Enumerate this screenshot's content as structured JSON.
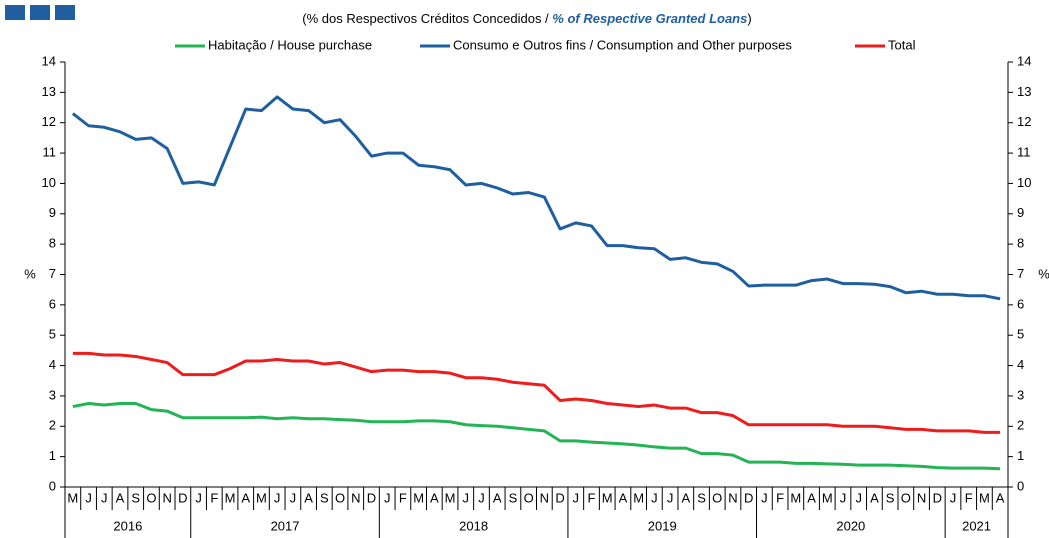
{
  "chart_data": {
    "type": "line",
    "subtitle": [
      "(% dos Respectivos  Créditos Concedidos / ",
      "% of Respective Granted Loans",
      ")"
    ],
    "categories": [
      "M",
      "J",
      "J",
      "A",
      "S",
      "O",
      "N",
      "D",
      "J",
      "F",
      "M",
      "A",
      "M",
      "J",
      "J",
      "A",
      "S",
      "O",
      "N",
      "D",
      "J",
      "F",
      "M",
      "A",
      "M",
      "J",
      "J",
      "A",
      "S",
      "O",
      "N",
      "D",
      "J",
      "F",
      "M",
      "A",
      "M",
      "J",
      "J",
      "A",
      "S",
      "O",
      "N",
      "D",
      "J",
      "F",
      "M",
      "A",
      "M",
      "J",
      "J",
      "A",
      "S",
      "O",
      "N",
      "D",
      "J",
      "F",
      "M",
      "A"
    ],
    "years": [
      "2016",
      "2017",
      "2018",
      "2019",
      "2020",
      "2021"
    ],
    "series": [
      {
        "name": "Habitação / House purchase",
        "color": "#22b455",
        "values": [
          2.65,
          2.75,
          2.7,
          2.75,
          2.75,
          2.55,
          2.5,
          2.28,
          2.28,
          2.28,
          2.28,
          2.28,
          2.3,
          2.25,
          2.28,
          2.25,
          2.25,
          2.22,
          2.2,
          2.15,
          2.15,
          2.15,
          2.18,
          2.18,
          2.15,
          2.05,
          2.02,
          2.0,
          1.95,
          1.9,
          1.85,
          1.52,
          1.52,
          1.48,
          1.45,
          1.42,
          1.38,
          1.32,
          1.28,
          1.28,
          1.1,
          1.1,
          1.05,
          0.82,
          0.82,
          0.82,
          0.78,
          0.78,
          0.76,
          0.75,
          0.72,
          0.72,
          0.72,
          0.7,
          0.68,
          0.64,
          0.62,
          0.62,
          0.62,
          0.6
        ]
      },
      {
        "name": "Consumo e Outros fins / Consumption and Other purposes",
        "color": "#1f5fa0",
        "values": [
          12.3,
          11.9,
          11.85,
          11.7,
          11.45,
          11.5,
          11.15,
          10.0,
          10.05,
          9.95,
          11.2,
          12.45,
          12.4,
          12.85,
          12.45,
          12.4,
          12.0,
          12.1,
          11.55,
          10.9,
          11.0,
          11.0,
          10.6,
          10.55,
          10.45,
          9.95,
          10.0,
          9.85,
          9.65,
          9.7,
          9.55,
          8.5,
          8.7,
          8.6,
          7.95,
          7.95,
          7.88,
          7.85,
          7.5,
          7.55,
          7.4,
          7.35,
          7.1,
          6.62,
          6.65,
          6.65,
          6.65,
          6.8,
          6.85,
          6.7,
          6.7,
          6.68,
          6.6,
          6.4,
          6.45,
          6.35,
          6.35,
          6.3,
          6.3,
          6.2
        ]
      },
      {
        "name": "Total",
        "color": "#ee1c1c",
        "values": [
          4.4,
          4.4,
          4.35,
          4.35,
          4.3,
          4.2,
          4.1,
          3.7,
          3.7,
          3.7,
          3.9,
          4.15,
          4.15,
          4.2,
          4.15,
          4.15,
          4.05,
          4.1,
          3.95,
          3.8,
          3.85,
          3.85,
          3.8,
          3.8,
          3.75,
          3.6,
          3.6,
          3.55,
          3.45,
          3.4,
          3.35,
          2.85,
          2.9,
          2.85,
          2.75,
          2.7,
          2.65,
          2.7,
          2.6,
          2.6,
          2.45,
          2.45,
          2.35,
          2.05,
          2.05,
          2.05,
          2.05,
          2.05,
          2.05,
          2.0,
          2.0,
          2.0,
          1.95,
          1.9,
          1.9,
          1.85,
          1.85,
          1.85,
          1.8,
          1.8
        ]
      }
    ],
    "ylabel": "%",
    "y2label": "%",
    "ylim": [
      0,
      14
    ],
    "yticks": [
      0,
      1,
      2,
      3,
      4,
      5,
      6,
      7,
      8,
      9,
      10,
      11,
      12,
      13,
      14
    ],
    "y2lim": [
      0,
      14
    ],
    "y2ticks": [
      0,
      1,
      2,
      3,
      4,
      5,
      6,
      7,
      8,
      9,
      10,
      11,
      12,
      13,
      14
    ]
  }
}
